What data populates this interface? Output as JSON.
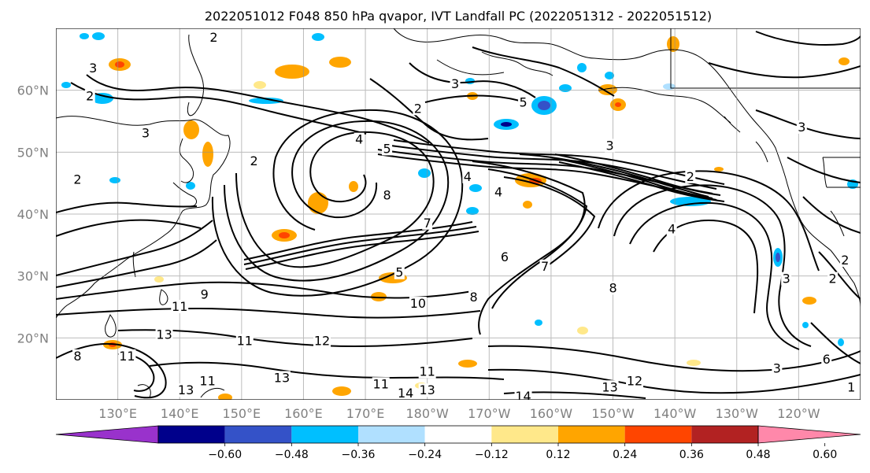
{
  "title": "2022051012 F048 850 hPa qvapor, IVT Landfall PC (2022051312 - 2022051512)",
  "map": {
    "lon_range": [
      120,
      250
    ],
    "lat_range": [
      10,
      70
    ],
    "lon_labels": [
      "130°E",
      "140°E",
      "150°E",
      "160°E",
      "170°E",
      "180°W",
      "170°W",
      "160°W",
      "150°W",
      "140°W",
      "130°W",
      "120°W"
    ],
    "lon_values": [
      130,
      140,
      150,
      160,
      170,
      180,
      190,
      200,
      210,
      220,
      230,
      240
    ],
    "lat_labels": [
      "20°N",
      "30°N",
      "40°N",
      "50°N",
      "60°N"
    ],
    "lat_values": [
      20,
      30,
      40,
      50,
      60
    ],
    "grid": true,
    "contour_labels": [
      {
        "text": "3",
        "lon": 126.0,
        "lat": 63.5
      },
      {
        "text": "2",
        "lon": 125.5,
        "lat": 59.0
      },
      {
        "text": "3",
        "lon": 134.5,
        "lat": 53.0
      },
      {
        "text": "2",
        "lon": 145.5,
        "lat": 68.5
      },
      {
        "text": "3",
        "lon": 184.5,
        "lat": 61.0
      },
      {
        "text": "2",
        "lon": 178.5,
        "lat": 57.0
      },
      {
        "text": "5",
        "lon": 195.5,
        "lat": 58.0
      },
      {
        "text": "3",
        "lon": 209.5,
        "lat": 51.0
      },
      {
        "text": "3",
        "lon": 240.5,
        "lat": 54.0
      },
      {
        "text": "4",
        "lon": 169.0,
        "lat": 52.0
      },
      {
        "text": "5",
        "lon": 173.5,
        "lat": 50.5
      },
      {
        "text": "2",
        "lon": 152.0,
        "lat": 48.5
      },
      {
        "text": "4",
        "lon": 186.5,
        "lat": 46.0
      },
      {
        "text": "4",
        "lon": 191.5,
        "lat": 43.5
      },
      {
        "text": "8",
        "lon": 173.5,
        "lat": 43.0
      },
      {
        "text": "7",
        "lon": 180.0,
        "lat": 38.5
      },
      {
        "text": "2",
        "lon": 222.5,
        "lat": 46.0
      },
      {
        "text": "4",
        "lon": 219.5,
        "lat": 37.5
      },
      {
        "text": "5",
        "lon": 175.5,
        "lat": 30.5
      },
      {
        "text": "6",
        "lon": 192.5,
        "lat": 33.0
      },
      {
        "text": "7",
        "lon": 199.0,
        "lat": 31.5
      },
      {
        "text": "8",
        "lon": 187.5,
        "lat": 26.5
      },
      {
        "text": "8",
        "lon": 210.0,
        "lat": 28.0
      },
      {
        "text": "9",
        "lon": 144.0,
        "lat": 27.0
      },
      {
        "text": "10",
        "lon": 178.5,
        "lat": 25.5
      },
      {
        "text": "11",
        "lon": 140.0,
        "lat": 25.0
      },
      {
        "text": "13",
        "lon": 137.5,
        "lat": 20.5
      },
      {
        "text": "12",
        "lon": 163.0,
        "lat": 19.5
      },
      {
        "text": "11",
        "lon": 150.5,
        "lat": 19.5
      },
      {
        "text": "11",
        "lon": 131.5,
        "lat": 17.0
      },
      {
        "text": "13",
        "lon": 156.5,
        "lat": 13.5
      },
      {
        "text": "13",
        "lon": 141.0,
        "lat": 11.5
      },
      {
        "text": "11",
        "lon": 144.5,
        "lat": 13.0
      },
      {
        "text": "11",
        "lon": 172.5,
        "lat": 12.5
      },
      {
        "text": "14",
        "lon": 176.5,
        "lat": 11.0
      },
      {
        "text": "13",
        "lon": 180.0,
        "lat": 11.5
      },
      {
        "text": "11",
        "lon": 180.0,
        "lat": 14.5
      },
      {
        "text": "14",
        "lon": 195.5,
        "lat": 10.5
      },
      {
        "text": "13",
        "lon": 209.5,
        "lat": 12.0
      },
      {
        "text": "12",
        "lon": 213.5,
        "lat": 13.0
      },
      {
        "text": "3",
        "lon": 236.5,
        "lat": 15.0
      },
      {
        "text": "6",
        "lon": 244.5,
        "lat": 16.5
      },
      {
        "text": "2",
        "lon": 245.5,
        "lat": 29.5
      },
      {
        "text": "3",
        "lon": 238.0,
        "lat": 29.5
      },
      {
        "text": "2",
        "lon": 247.5,
        "lat": 32.5
      },
      {
        "text": "1",
        "lon": 248.5,
        "lat": 12.0
      },
      {
        "text": "8",
        "lon": 123.5,
        "lat": 17.0
      },
      {
        "text": "2",
        "lon": 123.5,
        "lat": 45.5
      }
    ]
  },
  "colorbar": {
    "colors": [
      "#9932cc",
      "#00008b",
      "#3452c8",
      "#00bfff",
      "#b0e0ff",
      "#ffffff",
      "#ffe88a",
      "#ffa500",
      "#ff4500",
      "#b22222",
      "#ff88aa"
    ],
    "tick_labels": [
      "−0.60",
      "−0.48",
      "−0.36",
      "−0.24",
      "−0.12",
      "0.12",
      "0.24",
      "0.36",
      "0.48",
      "0.60"
    ],
    "tick_values": [
      -0.6,
      -0.48,
      -0.36,
      -0.24,
      -0.12,
      0.12,
      0.24,
      0.36,
      0.48,
      0.6
    ]
  }
}
